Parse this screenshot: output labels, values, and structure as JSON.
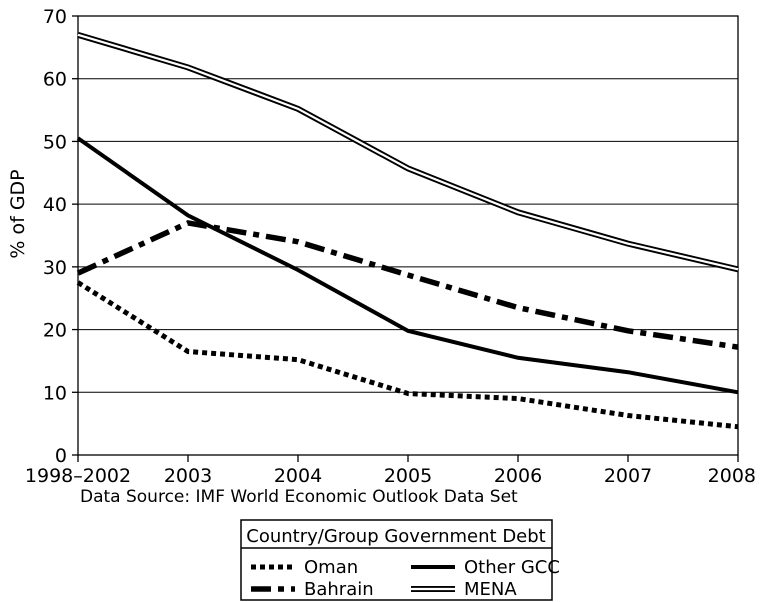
{
  "chart_data": {
    "type": "line",
    "title": "",
    "xlabel": "",
    "ylabel": "% of GDP",
    "x": [
      "1998–2002",
      "2003",
      "2004",
      "2005",
      "2006",
      "2007",
      "2008"
    ],
    "ylim": [
      0,
      70
    ],
    "yticks": [
      0,
      10,
      20,
      30,
      40,
      50,
      60,
      70
    ],
    "grid": "horizontal",
    "source_note": "Data Source: IMF World Economic Outlook Data Set",
    "legend": {
      "title": "Country/Group Government Debt",
      "placement": "bottom-center"
    },
    "series": [
      {
        "name": "Oman",
        "style": "dotted",
        "values": [
          27.5,
          16.5,
          15.2,
          9.8,
          9.0,
          6.3,
          4.5
        ]
      },
      {
        "name": "Other GCC",
        "style": "solid",
        "values": [
          50.5,
          38.2,
          29.5,
          19.8,
          15.5,
          13.2,
          10.0
        ]
      },
      {
        "name": "Bahrain",
        "style": "dash-dot",
        "values": [
          29.0,
          37.0,
          34.0,
          28.7,
          23.5,
          19.8,
          17.2
        ]
      },
      {
        "name": "MENA",
        "style": "double",
        "values": [
          67.0,
          61.8,
          55.2,
          45.7,
          38.7,
          33.7,
          29.6
        ]
      }
    ],
    "colors": {
      "lines": "#000000",
      "grid": "#000000"
    }
  }
}
